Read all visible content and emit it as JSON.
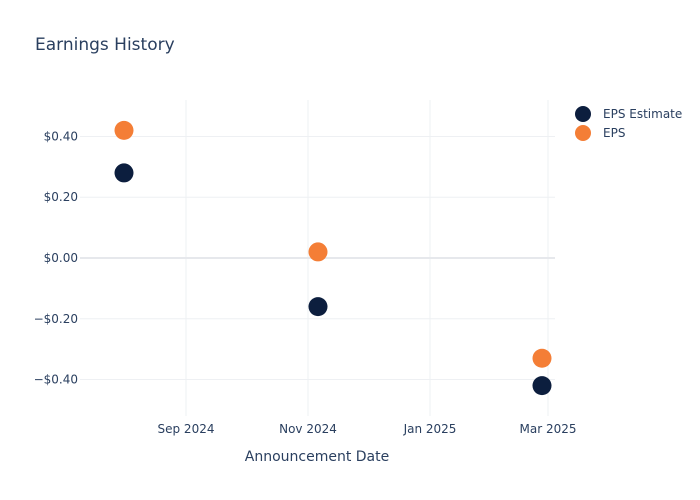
{
  "chart_data": {
    "type": "scatter",
    "title": "Earnings History",
    "xlabel": "Announcement Date",
    "ylabel": "",
    "x_tick_labels": [
      "Sep 2024",
      "Nov 2024",
      "Jan 2025",
      "Mar 2025"
    ],
    "y_tick_labels": [
      "−$0.40",
      "−$0.20",
      "$0.00",
      "$0.20",
      "$0.40"
    ],
    "y_ticks": [
      -0.4,
      -0.2,
      0,
      0.2,
      0.4
    ],
    "ylim": [
      -0.52,
      0.52
    ],
    "x": [
      "2024-08-01",
      "2024-11-06",
      "2025-02-26"
    ],
    "series": [
      {
        "name": "EPS Estimate",
        "color": "#0c1e3e",
        "values": [
          0.28,
          -0.16,
          -0.42
        ]
      },
      {
        "name": "EPS",
        "color": "#f47e36",
        "values": [
          0.42,
          0.02,
          -0.33
        ]
      }
    ],
    "grid": true,
    "legend_position": "top-right"
  }
}
